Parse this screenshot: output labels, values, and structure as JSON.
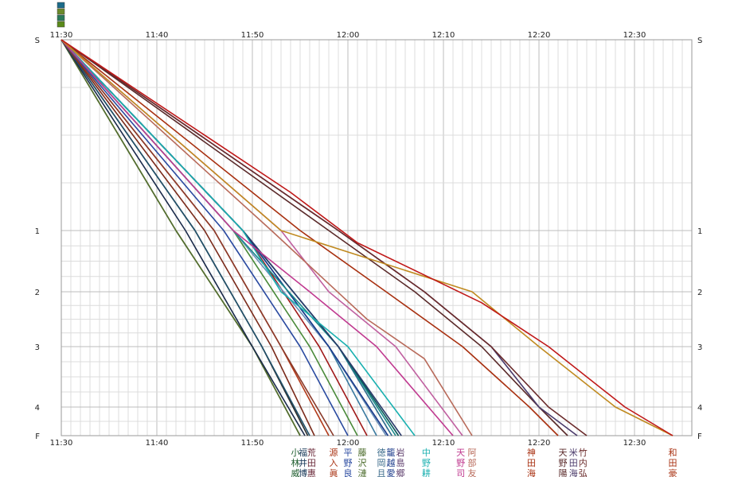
{
  "chart_data": {
    "type": "line",
    "title": "",
    "xlabel": "",
    "ylabel": "",
    "x_range": [
      "11:30",
      "12:36"
    ],
    "x_ticks": [
      "11:30",
      "11:40",
      "11:50",
      "12:00",
      "12:10",
      "12:20",
      "12:30"
    ],
    "y_ticks": [
      {
        "label": "S",
        "value": 0
      },
      {
        "label": "1",
        "value": 1
      },
      {
        "label": "2",
        "value": 2
      },
      {
        "label": "3",
        "value": 3
      },
      {
        "label": "4",
        "value": 4
      },
      {
        "label": "F",
        "value": 4.5
      }
    ],
    "grid": true,
    "legend_colors": [
      "#1b6b8a",
      "#6b8a2a",
      "#2a7a5a",
      "#5a8a1a"
    ],
    "series": [
      {
        "color": "#2e7d1a",
        "points": [
          [
            "11:30",
            0
          ],
          [
            "11:42",
            1
          ],
          [
            "11:50",
            3
          ],
          [
            "11:55",
            4.5
          ]
        ]
      },
      {
        "color": "#556b2f",
        "points": [
          [
            "11:30",
            0
          ],
          [
            "11:42",
            1
          ],
          [
            "11:50",
            3
          ],
          [
            "11:55",
            4.5
          ]
        ]
      },
      {
        "color": "#1a2a4a",
        "points": [
          [
            "11:30",
            0
          ],
          [
            "11:43",
            1
          ],
          [
            "11:50",
            3
          ],
          [
            "11:55.5",
            4.5
          ]
        ]
      },
      {
        "color": "#2d2d2d",
        "points": [
          [
            "11:30",
            0
          ],
          [
            "11:44",
            1
          ],
          [
            "11:51",
            3
          ],
          [
            "11:55.8",
            4.5
          ]
        ]
      },
      {
        "color": "#20506a",
        "points": [
          [
            "11:30",
            0
          ],
          [
            "11:44",
            1
          ],
          [
            "11:51",
            3
          ],
          [
            "11:56",
            4.5
          ]
        ]
      },
      {
        "color": "#7a2a1a",
        "points": [
          [
            "11:30",
            0
          ],
          [
            "11:45",
            1
          ],
          [
            "11:52",
            3
          ],
          [
            "11:56.5",
            4.5
          ]
        ]
      },
      {
        "color": "#b23a1a",
        "points": [
          [
            "11:30",
            0
          ],
          [
            "11:46",
            1
          ],
          [
            "11:53",
            3
          ],
          [
            "11:58",
            4.5
          ]
        ]
      },
      {
        "color": "#8a3a2a",
        "points": [
          [
            "11:30",
            0
          ],
          [
            "11:46",
            1
          ],
          [
            "11:53",
            3
          ],
          [
            "11:58.5",
            4.5
          ]
        ]
      },
      {
        "color": "#2a4aa0",
        "points": [
          [
            "11:30",
            0
          ],
          [
            "11:47",
            1
          ],
          [
            "11:55",
            3
          ],
          [
            "12:00",
            4.5
          ]
        ]
      },
      {
        "color": "#4a8a3a",
        "points": [
          [
            "11:30",
            0
          ],
          [
            "11:48",
            1
          ],
          [
            "11:56",
            3
          ],
          [
            "12:01",
            4.5
          ]
        ]
      },
      {
        "color": "#a01a1a",
        "points": [
          [
            "11:30",
            0
          ],
          [
            "11:49",
            1
          ],
          [
            "11:57",
            3
          ],
          [
            "12:02",
            4.5
          ]
        ]
      },
      {
        "color": "#3a7aa0",
        "points": [
          [
            "11:30",
            0
          ],
          [
            "11:49",
            1
          ],
          [
            "11:58",
            3
          ],
          [
            "12:03",
            4.5
          ]
        ]
      },
      {
        "color": "#6a90b8",
        "points": [
          [
            "11:30",
            0
          ],
          [
            "11:48",
            1
          ],
          [
            "11:58",
            3
          ],
          [
            "12:04",
            4.5
          ]
        ]
      },
      {
        "color": "#1a3a8a",
        "points": [
          [
            "11:30",
            0
          ],
          [
            "11:49",
            1
          ],
          [
            "11:58",
            3
          ],
          [
            "12:04.2",
            4.5
          ]
        ]
      },
      {
        "color": "#2a6a8a",
        "points": [
          [
            "11:30",
            0
          ],
          [
            "11:49",
            1
          ],
          [
            "11:59",
            3
          ],
          [
            "12:04.6",
            4.5
          ]
        ]
      },
      {
        "color": "#1a8a8a",
        "points": [
          [
            "11:30",
            0
          ],
          [
            "11:48",
            1
          ],
          [
            "11:59",
            3
          ],
          [
            "12:05",
            4.5
          ]
        ]
      },
      {
        "color": "#0a5a5a",
        "points": [
          [
            "11:30",
            0
          ],
          [
            "11:49",
            1
          ],
          [
            "11:59",
            3
          ],
          [
            "12:05.3",
            4.5
          ]
        ]
      },
      {
        "color": "#2a3a6a",
        "points": [
          [
            "11:30",
            0
          ],
          [
            "11:49",
            1
          ],
          [
            "11:59",
            3
          ],
          [
            "12:05.6",
            4.5
          ]
        ]
      },
      {
        "color": "#1ab0b0",
        "points": [
          [
            "11:30",
            0
          ],
          [
            "11:49",
            1
          ],
          [
            "11:53",
            2
          ],
          [
            "12:00",
            3
          ],
          [
            "12:07",
            4.5
          ]
        ]
      },
      {
        "color": "#c03a90",
        "points": [
          [
            "11:30",
            0
          ],
          [
            "11:48",
            1
          ],
          [
            "11:56",
            2
          ],
          [
            "12:03",
            3
          ],
          [
            "12:11",
            4.5
          ]
        ]
      },
      {
        "color": "#c060a0",
        "points": [
          [
            "11:30",
            0
          ],
          [
            "11:53",
            1
          ],
          [
            "11:58",
            2
          ],
          [
            "12:05",
            3
          ],
          [
            "12:12",
            4.5
          ]
        ]
      },
      {
        "color": "#b86a5a",
        "points": [
          [
            "11:30",
            0
          ],
          [
            "11:52",
            1
          ],
          [
            "12:02",
            2.5
          ],
          [
            "12:08",
            3.2
          ],
          [
            "12:13",
            4.5
          ]
        ]
      },
      {
        "color": "#a83010",
        "points": [
          [
            "11:30",
            0
          ],
          [
            "11:55",
            1
          ],
          [
            "12:04",
            2
          ],
          [
            "12:12",
            3
          ],
          [
            "12:19",
            4
          ],
          [
            "12:22",
            4.5
          ]
        ]
      },
      {
        "color": "#5a2a2a",
        "points": [
          [
            "11:30",
            0
          ],
          [
            "11:58",
            1
          ],
          [
            "12:07",
            2
          ],
          [
            "12:14",
            3
          ],
          [
            "12:20",
            4
          ],
          [
            "12:23",
            4.5
          ]
        ]
      },
      {
        "color": "#4a3a6a",
        "points": [
          [
            "11:30",
            0
          ],
          [
            "11:59",
            1
          ],
          [
            "12:08",
            2
          ],
          [
            "12:15",
            3
          ],
          [
            "12:20",
            4
          ],
          [
            "12:24",
            4.5
          ]
        ]
      },
      {
        "color": "#6a2a2a",
        "points": [
          [
            "11:30",
            0
          ],
          [
            "11:59",
            1
          ],
          [
            "12:08",
            2
          ],
          [
            "12:15",
            3
          ],
          [
            "12:21",
            4
          ],
          [
            "12:25",
            4.5
          ]
        ]
      },
      {
        "color": "#c08a20",
        "points": [
          [
            "11:30",
            0
          ],
          [
            "11:53",
            1
          ],
          [
            "12:03",
            1.5
          ],
          [
            "12:13",
            2
          ],
          [
            "12:20",
            3
          ],
          [
            "12:28",
            4
          ],
          [
            "12:34",
            4.5
          ]
        ]
      },
      {
        "color": "#c01818",
        "points": [
          [
            "11:30",
            0
          ],
          [
            "11:54",
            0.8
          ],
          [
            "12:01",
            1.2
          ],
          [
            "12:14",
            2.2
          ],
          [
            "12:21",
            3
          ],
          [
            "12:29",
            4
          ],
          [
            "12:34",
            4.5
          ]
        ]
      }
    ],
    "bottom_labels": [
      {
        "time": "11:54.5",
        "lines": [
          "小",
          "林",
          "威"
        ],
        "color": "#1a5a2a"
      },
      {
        "time": "11:55.3",
        "lines": [
          "福",
          "井",
          "博"
        ],
        "color": "#1a3a5a"
      },
      {
        "time": "11:56.2",
        "lines": [
          "荒",
          "田",
          "惠"
        ],
        "color": "#6a2a3a"
      },
      {
        "time": "11:58.5",
        "lines": [
          "源",
          "入",
          "眞"
        ],
        "color": "#a83010"
      },
      {
        "time": "12:00",
        "lines": [
          "平",
          "野",
          "良"
        ],
        "color": "#2a4aa0"
      },
      {
        "time": "12:01.5",
        "lines": [
          "藤",
          "沢",
          "漣"
        ],
        "color": "#4a6a2a"
      },
      {
        "time": "12:03.5",
        "lines": [
          "徳",
          "岡",
          "且"
        ],
        "color": "#3a6a8a"
      },
      {
        "time": "12:04.5",
        "lines": [
          "籠",
          "越",
          "愛"
        ],
        "color": "#1a3a8a"
      },
      {
        "time": "12:05.5",
        "lines": [
          "岩",
          "島",
          "郷"
        ],
        "color": "#5a3a6a"
      },
      {
        "time": "12:08.2",
        "lines": [
          "中",
          "野",
          "耕"
        ],
        "color": "#1ab0b0"
      },
      {
        "time": "12:11.8",
        "lines": [
          "天",
          "野",
          "司"
        ],
        "color": "#c03a90"
      },
      {
        "time": "12:13",
        "lines": [
          "阿",
          "部",
          "友"
        ],
        "color": "#b86a5a"
      },
      {
        "time": "12:19.2",
        "lines": [
          "神",
          "田",
          "海"
        ],
        "color": "#a83010"
      },
      {
        "time": "12:22.5",
        "lines": [
          "天",
          "野",
          "陽"
        ],
        "color": "#5a2a2a"
      },
      {
        "time": "12:23.6",
        "lines": [
          "米",
          "田",
          "海"
        ],
        "color": "#4a3a6a"
      },
      {
        "time": "12:24.6",
        "lines": [
          "竹",
          "内",
          "弘"
        ],
        "color": "#6a2a2a"
      },
      {
        "time": "12:34",
        "lines": [
          "和",
          "田",
          "豪"
        ],
        "color": "#a83010"
      }
    ]
  }
}
